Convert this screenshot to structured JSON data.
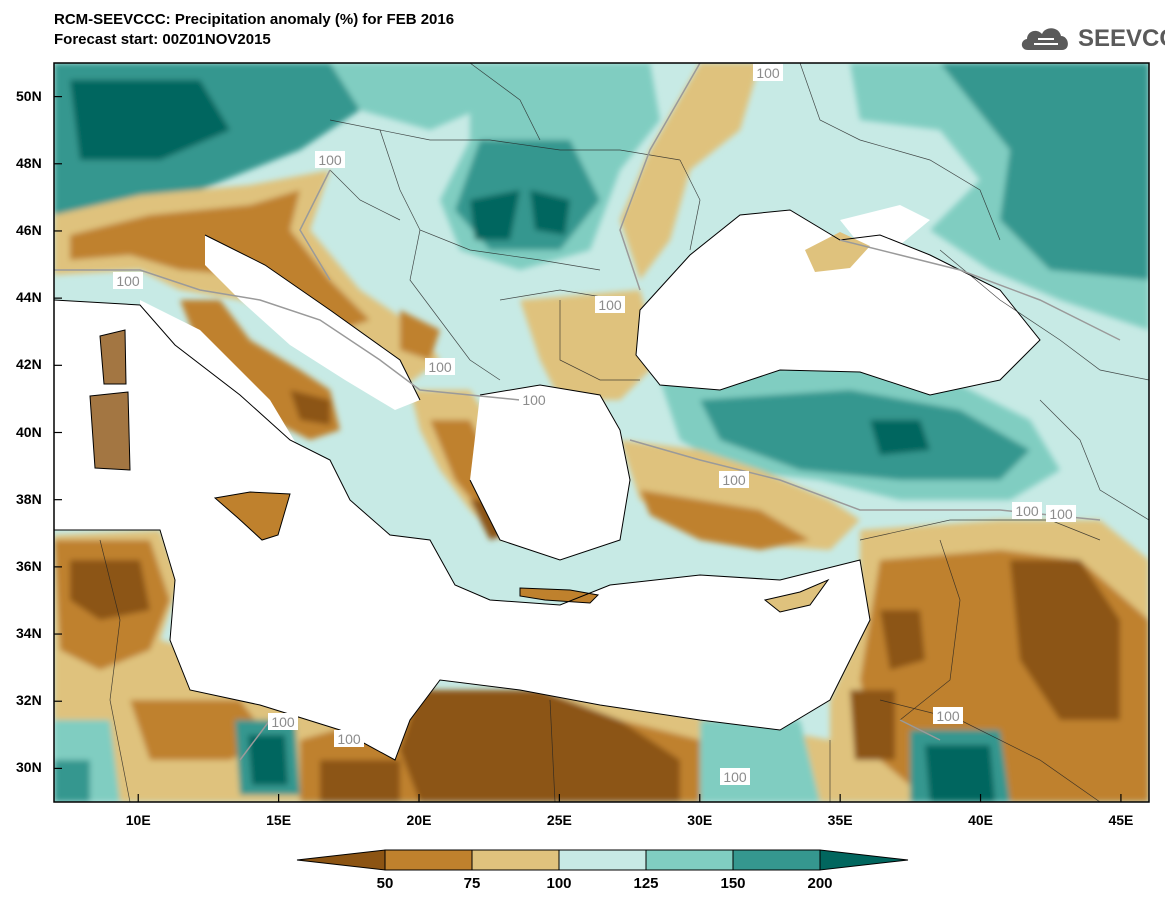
{
  "header": {
    "title": "RCM-SEEVCCC: Precipitation anomaly (%) for FEB 2016",
    "subtitle": "Forecast start: 00Z01NOV2015"
  },
  "logo": {
    "text": "SEEVCCC",
    "icon": "cloud-icon"
  },
  "map": {
    "lon_range": [
      7,
      46
    ],
    "lat_range": [
      29,
      51
    ],
    "y_ticks": [
      "50N",
      "48N",
      "46N",
      "44N",
      "42N",
      "40N",
      "38N",
      "36N",
      "34N",
      "32N",
      "30N"
    ],
    "x_ticks": [
      "10E",
      "15E",
      "20E",
      "25E",
      "30E",
      "35E",
      "40E",
      "45E"
    ],
    "contour_labels": [
      "100",
      "100",
      "100",
      "100",
      "100",
      "100",
      "100",
      "100",
      "100",
      "100",
      "100",
      "100",
      "100"
    ],
    "sea_color": "#ffffff",
    "land_base_color": "#c6ebe6"
  },
  "colorbar": {
    "colors": [
      "#8c5413",
      "#bf812d",
      "#dfc27d",
      "#c7eae5",
      "#80cdc1",
      "#35978f",
      "#01665e"
    ],
    "labels": [
      "50",
      "75",
      "100",
      "125",
      "150",
      "200"
    ]
  }
}
